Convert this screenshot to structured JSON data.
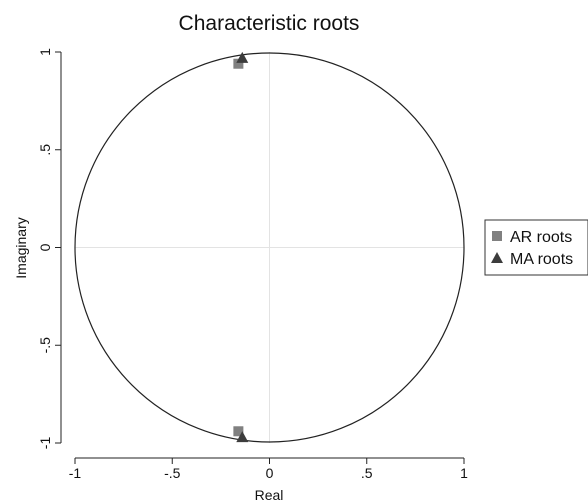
{
  "chart_data": {
    "type": "scatter",
    "title": "Characteristic roots",
    "xlabel": "Real",
    "ylabel": "Imaginary",
    "xlim": [
      -1,
      1
    ],
    "ylim": [
      -1,
      1
    ],
    "x_ticks": [
      {
        "value": -1,
        "label": "-1"
      },
      {
        "value": -0.5,
        "label": "-.5"
      },
      {
        "value": 0,
        "label": "0"
      },
      {
        "value": 0.5,
        "label": ".5"
      },
      {
        "value": 1,
        "label": "1"
      }
    ],
    "y_ticks": [
      {
        "value": -1,
        "label": "-1"
      },
      {
        "value": -0.5,
        "label": "-.5"
      },
      {
        "value": 0,
        "label": "0"
      },
      {
        "value": 0.5,
        "label": ".5"
      },
      {
        "value": 1,
        "label": "1"
      }
    ],
    "unit_circle": true,
    "zero_lines": true,
    "legend_position": "right",
    "series": [
      {
        "name": "AR roots",
        "marker": "square",
        "color": "#808080",
        "points": [
          {
            "x": -0.16,
            "y": 0.94
          },
          {
            "x": -0.16,
            "y": -0.94
          }
        ]
      },
      {
        "name": "MA roots",
        "marker": "triangle",
        "color": "#3c3c3c",
        "points": [
          {
            "x": -0.14,
            "y": 0.97
          },
          {
            "x": -0.14,
            "y": -0.97
          }
        ]
      }
    ]
  }
}
